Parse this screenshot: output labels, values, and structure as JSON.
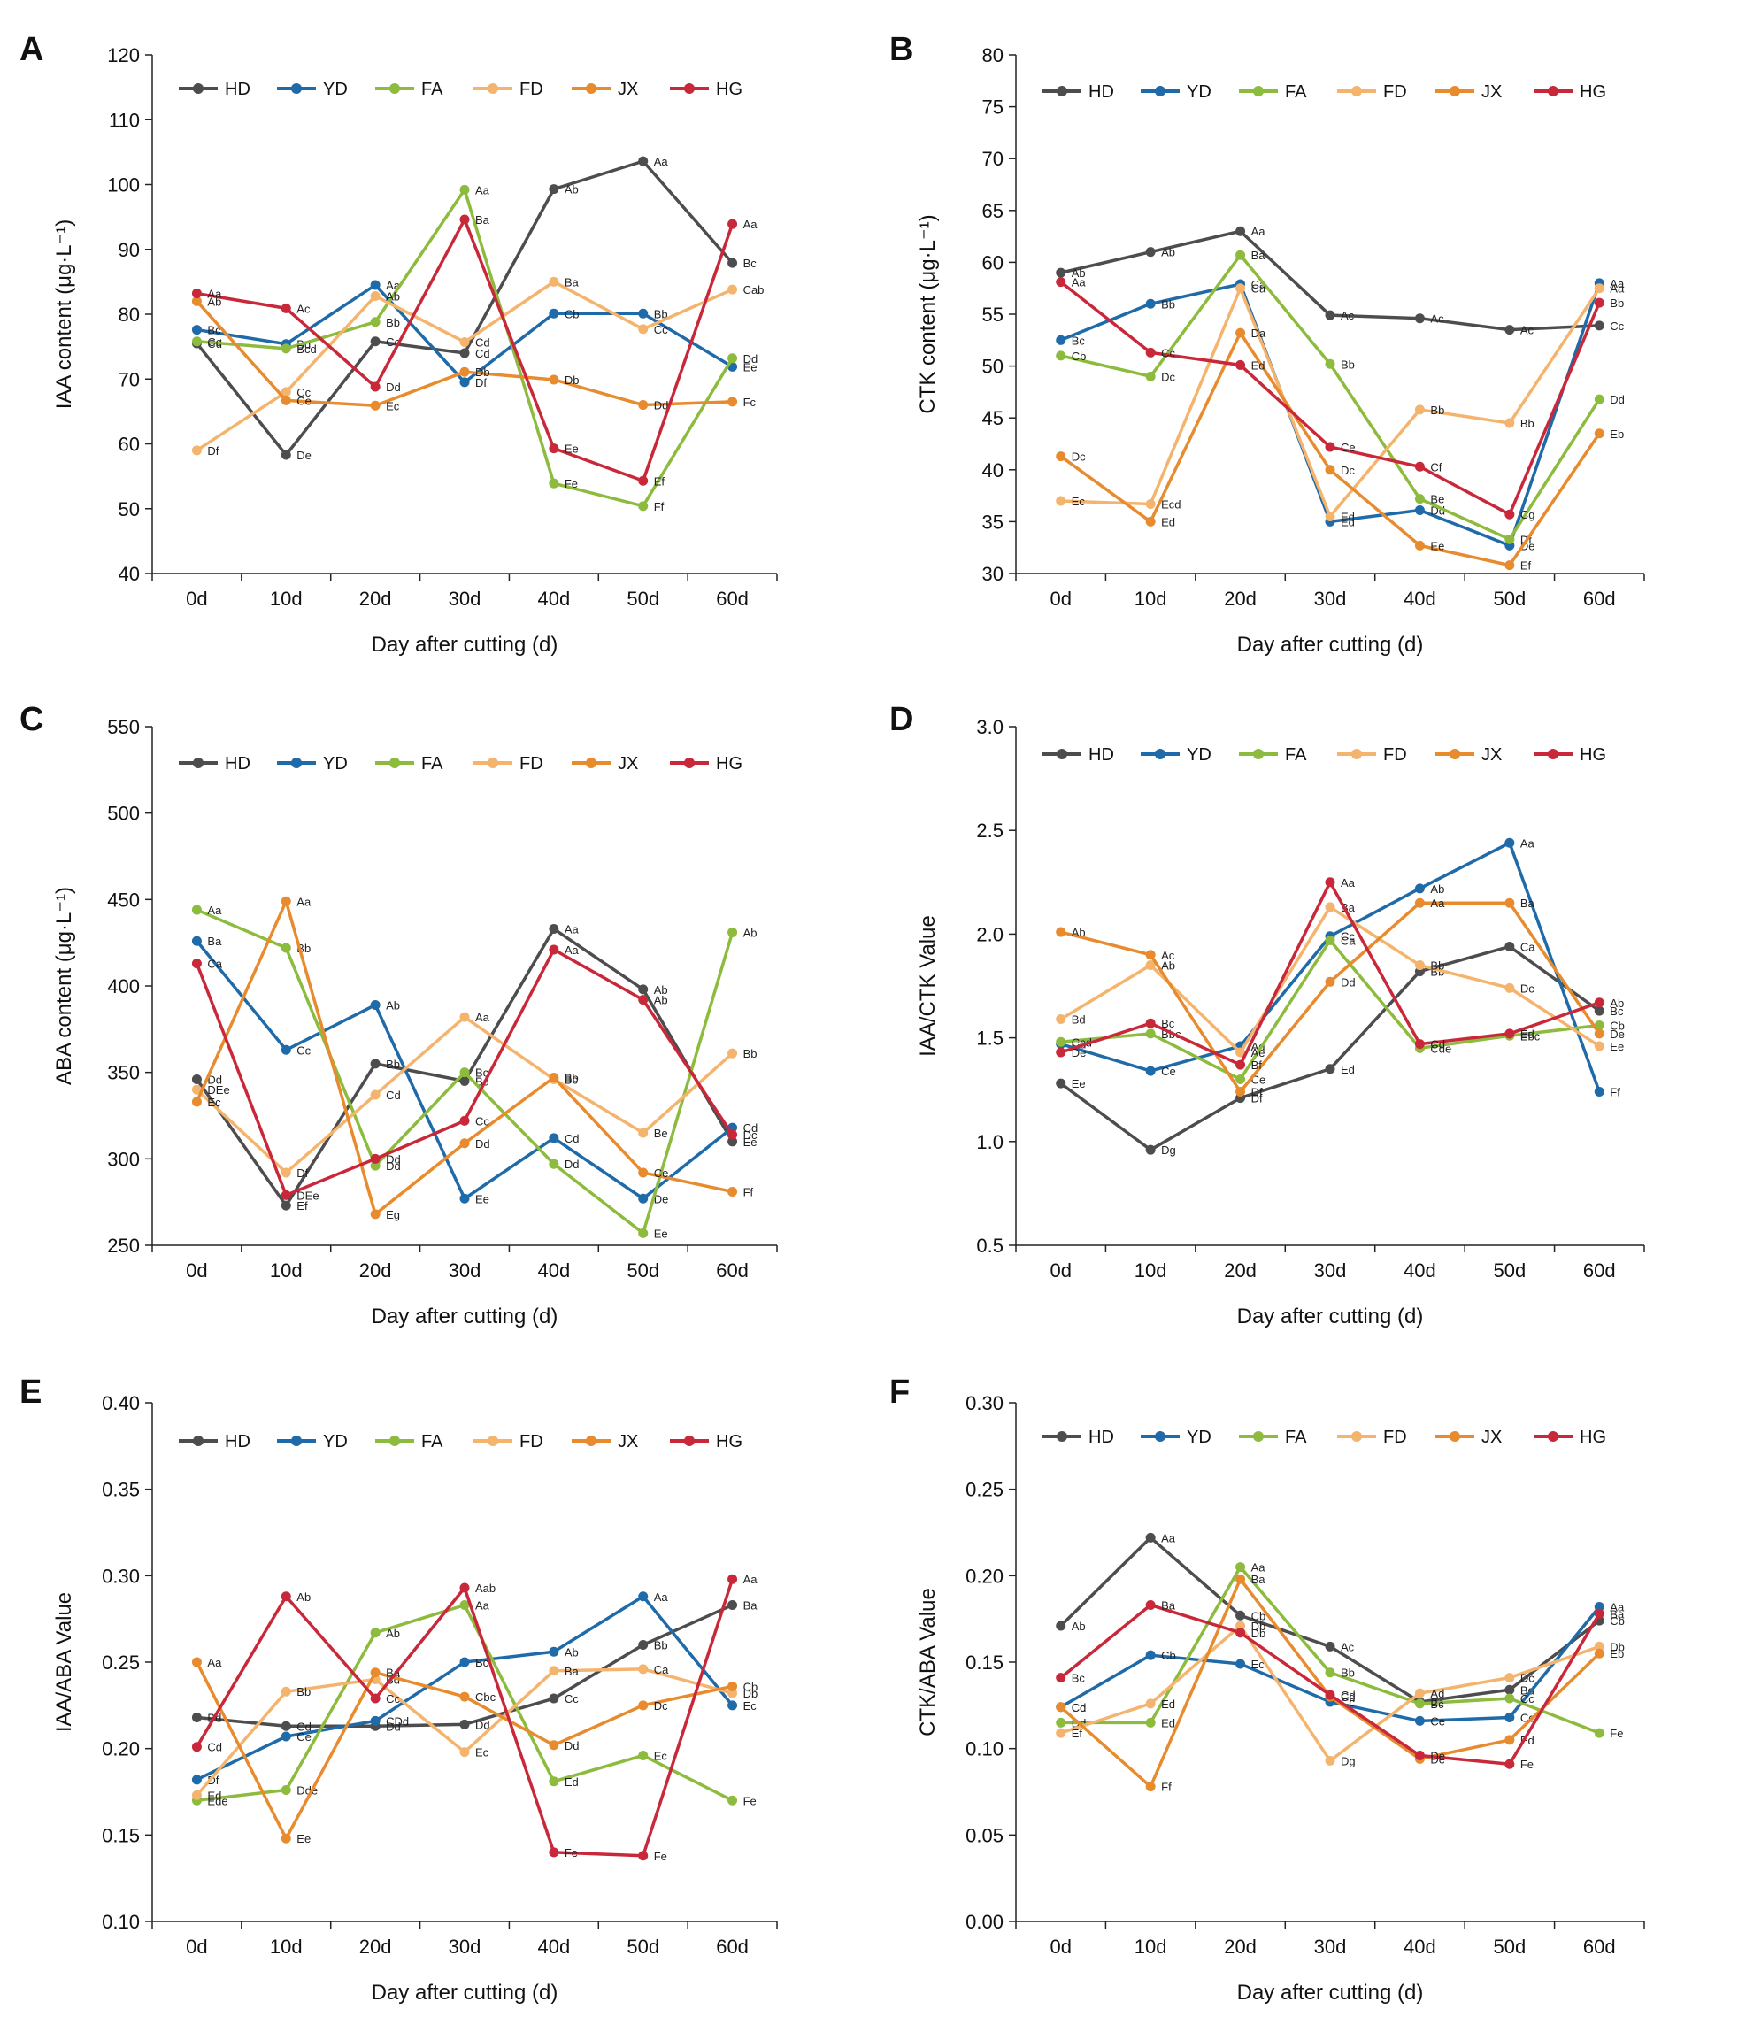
{
  "figure": {
    "series_names": [
      "HD",
      "YD",
      "FA",
      "FD",
      "JX",
      "HG"
    ],
    "colors": {
      "HD": "#4d4d4f",
      "YD": "#1f6aa8",
      "FA": "#8dbb3e",
      "FD": "#f5b46e",
      "JX": "#e88b2e",
      "HG": "#c9283a"
    }
  },
  "chart_data": [
    {
      "panel": "A",
      "type": "line",
      "xlabel": "Day after cutting (d)",
      "ylabel": "IAA content (μg·L⁻¹)",
      "categories": [
        "0d",
        "10d",
        "20d",
        "30d",
        "40d",
        "50d",
        "60d"
      ],
      "ylim": [
        40,
        120
      ],
      "yticks": [
        40,
        50,
        60,
        70,
        80,
        90,
        100,
        110,
        120
      ],
      "decimals": 0,
      "series": [
        {
          "name": "HD",
          "values": [
            75.5,
            58.3,
            75.8,
            74.0,
            99.3,
            103.6,
            87.9
          ],
          "labels": [
            "Cd",
            "De",
            "Cc",
            "Cd",
            "Ab",
            "Aa",
            "Bc"
          ]
        },
        {
          "name": "YD",
          "values": [
            77.6,
            75.4,
            84.5,
            69.5,
            80.1,
            80.1,
            71.9
          ],
          "labels": [
            "Bc",
            "Bd",
            "Aa",
            "Df",
            "Cb",
            "Bb",
            "Ee"
          ]
        },
        {
          "name": "FA",
          "values": [
            75.8,
            74.7,
            78.8,
            99.2,
            53.9,
            50.4,
            73.2
          ],
          "labels": [
            "Cc",
            "Bcd",
            "Bb",
            "Aa",
            "Fe",
            "Ff",
            "Dd"
          ]
        },
        {
          "name": "FD",
          "values": [
            59.0,
            68.0,
            82.8,
            75.7,
            85.0,
            77.7,
            83.8
          ],
          "labels": [
            "Df",
            "Cc",
            "Ab",
            "Cd",
            "Ba",
            "Cc",
            "Cab"
          ]
        },
        {
          "name": "JX",
          "values": [
            82.0,
            66.7,
            65.9,
            71.1,
            69.9,
            66.0,
            66.5
          ],
          "labels": [
            "Ab",
            "Ce",
            "Ec",
            "Db",
            "Db",
            "Dd",
            "Fc"
          ]
        },
        {
          "name": "HG",
          "values": [
            83.2,
            80.9,
            68.8,
            94.6,
            59.3,
            54.3,
            93.9
          ],
          "labels": [
            "Aa",
            "Ac",
            "Dd",
            "Ba",
            "Ee",
            "Ef",
            "Aa"
          ]
        }
      ]
    },
    {
      "panel": "B",
      "type": "line",
      "xlabel": "Day after cutting (d)",
      "ylabel": "CTK content (μg·L⁻¹)",
      "categories": [
        "0d",
        "10d",
        "20d",
        "30d",
        "40d",
        "50d",
        "60d"
      ],
      "ylim": [
        30,
        80
      ],
      "yticks": [
        30,
        35,
        40,
        45,
        50,
        55,
        60,
        65,
        70,
        75,
        80
      ],
      "decimals": 0,
      "series": [
        {
          "name": "HD",
          "values": [
            59.0,
            61.0,
            63.0,
            54.9,
            54.6,
            53.5,
            53.9
          ],
          "labels": [
            "Ab",
            "Ab",
            "Aa",
            "Ac",
            "Ac",
            "Ac",
            "Cc"
          ]
        },
        {
          "name": "YD",
          "values": [
            52.5,
            56.0,
            57.9,
            35.0,
            36.1,
            32.7,
            58.0
          ],
          "labels": [
            "Bc",
            "Bb",
            "Ca",
            "Ed",
            "Dd",
            "De",
            "Aa"
          ]
        },
        {
          "name": "FA",
          "values": [
            51.0,
            49.0,
            60.7,
            50.2,
            37.2,
            33.3,
            46.8
          ],
          "labels": [
            "Cb",
            "Dc",
            "Ba",
            "Bb",
            "Be",
            "Df",
            "Dd"
          ]
        },
        {
          "name": "FD",
          "values": [
            37.0,
            36.7,
            57.5,
            35.5,
            45.8,
            44.5,
            57.5
          ],
          "labels": [
            "Ec",
            "Ecd",
            "Ca",
            "Ed",
            "Bb",
            "Bb",
            "Aa"
          ]
        },
        {
          "name": "JX",
          "values": [
            41.3,
            35.0,
            53.2,
            40.0,
            32.7,
            30.8,
            43.5
          ],
          "labels": [
            "Dc",
            "Ed",
            "Da",
            "Dc",
            "Ee",
            "Ef",
            "Eb"
          ]
        },
        {
          "name": "HG",
          "values": [
            58.1,
            51.3,
            50.1,
            42.2,
            40.3,
            35.7,
            56.1
          ],
          "labels": [
            "Aa",
            "Cc",
            "Ed",
            "Ce",
            "Cf",
            "Cg",
            "Bb"
          ]
        }
      ]
    },
    {
      "panel": "C",
      "type": "line",
      "xlabel": "Day after cutting (d)",
      "ylabel": "ABA content (μg·L⁻¹)",
      "categories": [
        "0d",
        "10d",
        "20d",
        "30d",
        "40d",
        "50d",
        "60d"
      ],
      "ylim": [
        250,
        550
      ],
      "yticks": [
        250,
        300,
        350,
        400,
        450,
        500,
        550
      ],
      "decimals": 0,
      "series": [
        {
          "name": "HD",
          "values": [
            346,
            273,
            355,
            345,
            433,
            398,
            310
          ],
          "labels": [
            "Dd",
            "Ef",
            "Bb",
            "Bd",
            "Aa",
            "Ab",
            "Ee"
          ]
        },
        {
          "name": "YD",
          "values": [
            426,
            363,
            389,
            277,
            312,
            277,
            318
          ],
          "labels": [
            "Ba",
            "Cc",
            "Ab",
            "Ee",
            "Cd",
            "De",
            "Cd"
          ]
        },
        {
          "name": "FA",
          "values": [
            444,
            422,
            296,
            350,
            297,
            257,
            431
          ],
          "labels": [
            "Aa",
            "Bb",
            "Dd",
            "Bc",
            "Dd",
            "Ee",
            "Ab"
          ]
        },
        {
          "name": "FD",
          "values": [
            340,
            292,
            337,
            382,
            346,
            315,
            361
          ],
          "labels": [
            "DEe",
            "Df",
            "Cd",
            "Aa",
            "Bc",
            "Be",
            "Bb"
          ]
        },
        {
          "name": "JX",
          "values": [
            333,
            449,
            268,
            309,
            347,
            292,
            281
          ],
          "labels": [
            "Ec",
            "Aa",
            "Eg",
            "Dd",
            "Bb",
            "Ce",
            "Ff"
          ]
        },
        {
          "name": "HG",
          "values": [
            413,
            279,
            300,
            322,
            421,
            392,
            314
          ],
          "labels": [
            "Ca",
            "DEe",
            "Dd",
            "Cc",
            "Aa",
            "Ab",
            "Dc"
          ]
        }
      ]
    },
    {
      "panel": "D",
      "type": "line",
      "xlabel": "Day after cutting (d)",
      "ylabel": "IAA/CTK Value",
      "categories": [
        "0d",
        "10d",
        "20d",
        "30d",
        "40d",
        "50d",
        "60d"
      ],
      "ylim": [
        0.5,
        3.0
      ],
      "yticks": [
        0.5,
        1.0,
        1.5,
        2.0,
        2.5,
        3.0
      ],
      "decimals": 1,
      "series": [
        {
          "name": "HD",
          "values": [
            1.28,
            0.96,
            1.21,
            1.35,
            1.82,
            1.94,
            1.63
          ],
          "labels": [
            "Ee",
            "Dg",
            "Df",
            "Ed",
            "Bb",
            "Ca",
            "Bc"
          ]
        },
        {
          "name": "YD",
          "values": [
            1.47,
            1.34,
            1.46,
            1.99,
            2.22,
            2.44,
            1.24
          ],
          "labels": [
            "Cd",
            "Ce",
            "Ad",
            "Cc",
            "Ab",
            "Aa",
            "Ff"
          ]
        },
        {
          "name": "FA",
          "values": [
            1.48,
            1.52,
            1.3,
            1.97,
            1.45,
            1.51,
            1.56
          ],
          "labels": [
            "Ccd",
            "Bbc",
            "Ce",
            "Ca",
            "Cde",
            "Ebc",
            "Cb"
          ]
        },
        {
          "name": "FD",
          "values": [
            1.59,
            1.85,
            1.43,
            2.13,
            1.85,
            1.74,
            1.46
          ],
          "labels": [
            "Bd",
            "Ab",
            "Ae",
            "Ba",
            "Bb",
            "Dc",
            "Ee"
          ]
        },
        {
          "name": "JX",
          "values": [
            2.01,
            1.9,
            1.24,
            1.77,
            2.15,
            2.15,
            1.52
          ],
          "labels": [
            "Ab",
            "Ac",
            "Df",
            "Dd",
            "Aa",
            "Ba",
            "De"
          ]
        },
        {
          "name": "HG",
          "values": [
            1.43,
            1.57,
            1.37,
            2.25,
            1.47,
            1.52,
            1.67
          ],
          "labels": [
            "De",
            "Bc",
            "Bf",
            "Aa",
            "Cd",
            "Ed",
            "Ab"
          ]
        }
      ]
    },
    {
      "panel": "E",
      "type": "line",
      "xlabel": "Day after cutting (d)",
      "ylabel": "IAA/ABA Value",
      "categories": [
        "0d",
        "10d",
        "20d",
        "30d",
        "40d",
        "50d",
        "60d"
      ],
      "ylim": [
        0.1,
        0.4
      ],
      "yticks": [
        0.1,
        0.15,
        0.2,
        0.25,
        0.3,
        0.35,
        0.4
      ],
      "decimals": 2,
      "series": [
        {
          "name": "HD",
          "values": [
            0.218,
            0.213,
            0.213,
            0.214,
            0.229,
            0.26,
            0.283
          ],
          "labels": [
            "Bd",
            "Cd",
            "Dd",
            "Dd",
            "Cc",
            "Bb",
            "Ba"
          ]
        },
        {
          "name": "YD",
          "values": [
            0.182,
            0.207,
            0.216,
            0.25,
            0.256,
            0.288,
            0.225
          ],
          "labels": [
            "Df",
            "Ce",
            "CDd",
            "Bc",
            "Ab",
            "Aa",
            "Ec"
          ]
        },
        {
          "name": "FA",
          "values": [
            0.17,
            0.176,
            0.267,
            0.283,
            0.181,
            0.196,
            0.17
          ],
          "labels": [
            "Ede",
            "Dde",
            "Ab",
            "Aa",
            "Ed",
            "Ec",
            "Fe"
          ]
        },
        {
          "name": "FD",
          "values": [
            0.173,
            0.233,
            0.24,
            0.198,
            0.245,
            0.246,
            0.232
          ],
          "labels": [
            "Ed",
            "Bb",
            "Bd",
            "Ec",
            "Ba",
            "Ca",
            "Db"
          ]
        },
        {
          "name": "JX",
          "values": [
            0.25,
            0.148,
            0.244,
            0.23,
            0.202,
            0.225,
            0.236
          ],
          "labels": [
            "Aa",
            "Ee",
            "Ba",
            "Cbc",
            "Dd",
            "Dc",
            "Cb"
          ]
        },
        {
          "name": "HG",
          "values": [
            0.201,
            0.288,
            0.229,
            0.293,
            0.14,
            0.138,
            0.298
          ],
          "labels": [
            "Cd",
            "Ab",
            "Cc",
            "Aab",
            "Fe",
            "Fe",
            "Aa"
          ]
        }
      ]
    },
    {
      "panel": "F",
      "type": "line",
      "xlabel": "Day after cutting (d)",
      "ylabel": "CTK/ABA Value",
      "categories": [
        "0d",
        "10d",
        "20d",
        "30d",
        "40d",
        "50d",
        "60d"
      ],
      "ylim": [
        0.0,
        0.3
      ],
      "yticks": [
        0.0,
        0.05,
        0.1,
        0.15,
        0.2,
        0.25,
        0.3
      ],
      "decimals": 2,
      "series": [
        {
          "name": "HD",
          "values": [
            0.171,
            0.222,
            0.177,
            0.159,
            0.127,
            0.134,
            0.174
          ],
          "labels": [
            "Ab",
            "Aa",
            "Cb",
            "Ac",
            "Be",
            "Bd",
            "Cb"
          ]
        },
        {
          "name": "YD",
          "values": [
            0.124,
            0.154,
            0.149,
            0.127,
            0.116,
            0.118,
            0.182
          ],
          "labels": [
            "Cc",
            "Cb",
            "Ec",
            "Cc",
            "Ce",
            "Ce",
            "Aa"
          ]
        },
        {
          "name": "FA",
          "values": [
            0.115,
            0.115,
            0.205,
            0.144,
            0.126,
            0.129,
            0.109
          ],
          "labels": [
            "Dd",
            "Ed",
            "Aa",
            "Bb",
            "Bc",
            "Cc",
            "Fe"
          ]
        },
        {
          "name": "FD",
          "values": [
            0.109,
            0.126,
            0.171,
            0.093,
            0.132,
            0.141,
            0.159
          ],
          "labels": [
            "Ef",
            "Ed",
            "Db",
            "Dg",
            "Ad",
            "Dc",
            "Db"
          ]
        },
        {
          "name": "JX",
          "values": [
            0.124,
            0.078,
            0.198,
            0.13,
            0.094,
            0.105,
            0.155
          ],
          "labels": [
            "Cd",
            "Ff",
            "Ba",
            "Cd",
            "De",
            "Ed",
            "Eb"
          ]
        },
        {
          "name": "HG",
          "values": [
            0.141,
            0.183,
            0.167,
            0.131,
            0.096,
            0.091,
            0.178
          ],
          "labels": [
            "Bc",
            "Ba",
            "Db",
            "Cd",
            "De",
            "Fe",
            "Ba"
          ]
        }
      ]
    }
  ]
}
